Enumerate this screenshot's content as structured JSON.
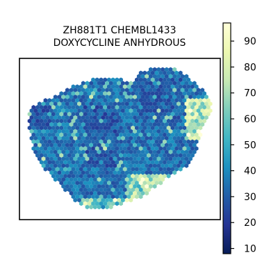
{
  "chart_data": {
    "type": "heatmap",
    "subtype": "hexbin",
    "title_lines": [
      "ZH881T1 CHEMBL1433",
      "DOXYCYCLINE ANHYDROUS"
    ],
    "xlabel": "",
    "ylabel": "",
    "axis_ticks_visible": false,
    "grid": false,
    "colormap": "YlGnBu_r",
    "colorbar": {
      "position": "right",
      "range": [
        8,
        97
      ],
      "ticks": [
        10,
        20,
        30,
        40,
        50,
        60,
        70,
        80,
        90
      ]
    },
    "value_summary": {
      "typical_range": [
        20,
        45
      ],
      "high_value_edges": "bottom-right and right edge of the point cloud reach 60-90"
    }
  },
  "colors": {
    "colormap_stops": [
      "#081d58",
      "#253494",
      "#225ea8",
      "#1d91c0",
      "#41b6c4",
      "#7fcdbb",
      "#c7e9b4",
      "#edf8b1",
      "#ffffd9"
    ],
    "frame": "#000000"
  }
}
